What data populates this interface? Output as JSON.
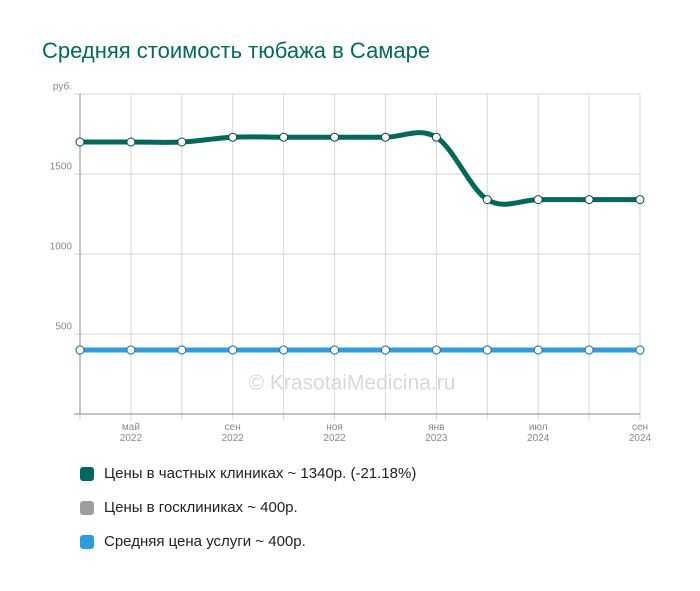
{
  "chart_data": {
    "type": "line",
    "title": "Средняя стоимость тюбажа в Самаре",
    "watermark": "© KrasotaiMedicina.ru",
    "categories": [
      null,
      "май 2022",
      null,
      "сен 2022",
      null,
      "ноя 2022",
      null,
      "янв 2023",
      null,
      "июл 2024",
      null,
      "сен 2024"
    ],
    "series": [
      {
        "name": "Цены в частных клиниках ~ 1340р. (-21.18%)",
        "color": "#00695c",
        "values": [
          1700,
          1700,
          1700,
          1730,
          1730,
          1730,
          1730,
          1730,
          1340,
          1340,
          1340,
          1340
        ]
      },
      {
        "name": "Цены в госклиниках ~ 400р.",
        "color": "#9e9e9e",
        "values": [
          400,
          400,
          400,
          400,
          400,
          400,
          400,
          400,
          400,
          400,
          400,
          400
        ]
      },
      {
        "name": "Средняя цена услуги ~ 400р.",
        "color": "#2b9de0",
        "values": [
          400,
          400,
          400,
          400,
          400,
          400,
          400,
          400,
          400,
          400,
          400,
          400
        ]
      }
    ],
    "ylim": [
      0,
      2000
    ],
    "yticks": [
      500,
      1000,
      1500,
      {
        "value": 2000,
        "label": "руб."
      }
    ],
    "grid": true
  }
}
